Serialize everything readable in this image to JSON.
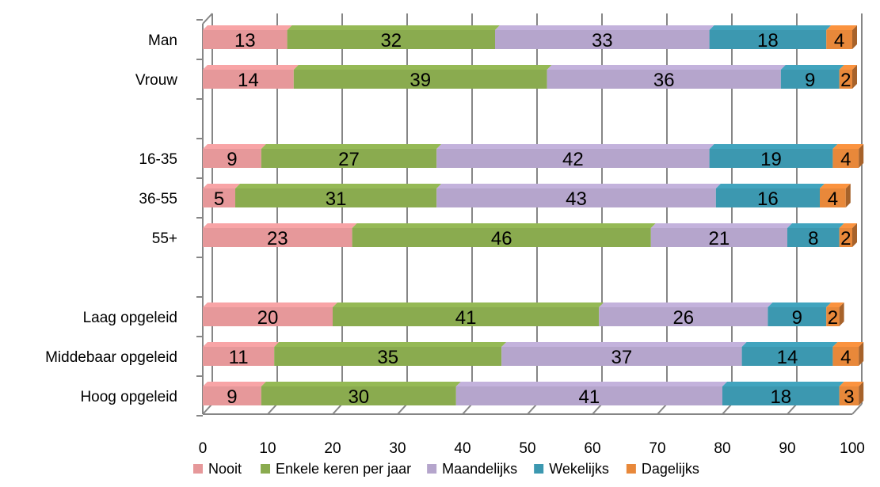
{
  "chart_data": {
    "type": "bar",
    "orientation": "horizontal",
    "stacked": true,
    "percent_stacked": true,
    "three_d": true,
    "categories": [
      "Man",
      "Vrouw",
      "",
      "16-35",
      "36-55",
      "55+",
      "",
      "Laag opgeleid",
      "Middebaar opgeleid",
      "Hoog opgeleid"
    ],
    "series": [
      {
        "name": "Nooit",
        "color": "#E6989A",
        "values": [
          13,
          14,
          null,
          9,
          5,
          23,
          null,
          20,
          11,
          9
        ]
      },
      {
        "name": "Enkele keren per jaar",
        "color": "#8AAB4F",
        "values": [
          32,
          39,
          null,
          27,
          31,
          46,
          null,
          41,
          35,
          30
        ]
      },
      {
        "name": "Maandelijks",
        "color": "#B5A5CC",
        "values": [
          33,
          36,
          null,
          42,
          43,
          21,
          null,
          26,
          37,
          41
        ]
      },
      {
        "name": "Wekelijks",
        "color": "#3C98B0",
        "values": [
          18,
          9,
          null,
          19,
          16,
          8,
          null,
          9,
          14,
          18
        ]
      },
      {
        "name": "Dagelijks",
        "color": "#E8883A",
        "values": [
          4,
          2,
          null,
          4,
          4,
          2,
          null,
          2,
          4,
          3
        ]
      }
    ],
    "xlim": [
      0,
      100
    ],
    "xticks": [
      "0",
      "10",
      "20",
      "30",
      "40",
      "50",
      "60",
      "70",
      "80",
      "90",
      "100"
    ],
    "grid": true,
    "legend_position": "bottom",
    "title": "",
    "xlabel": "",
    "ylabel": ""
  }
}
